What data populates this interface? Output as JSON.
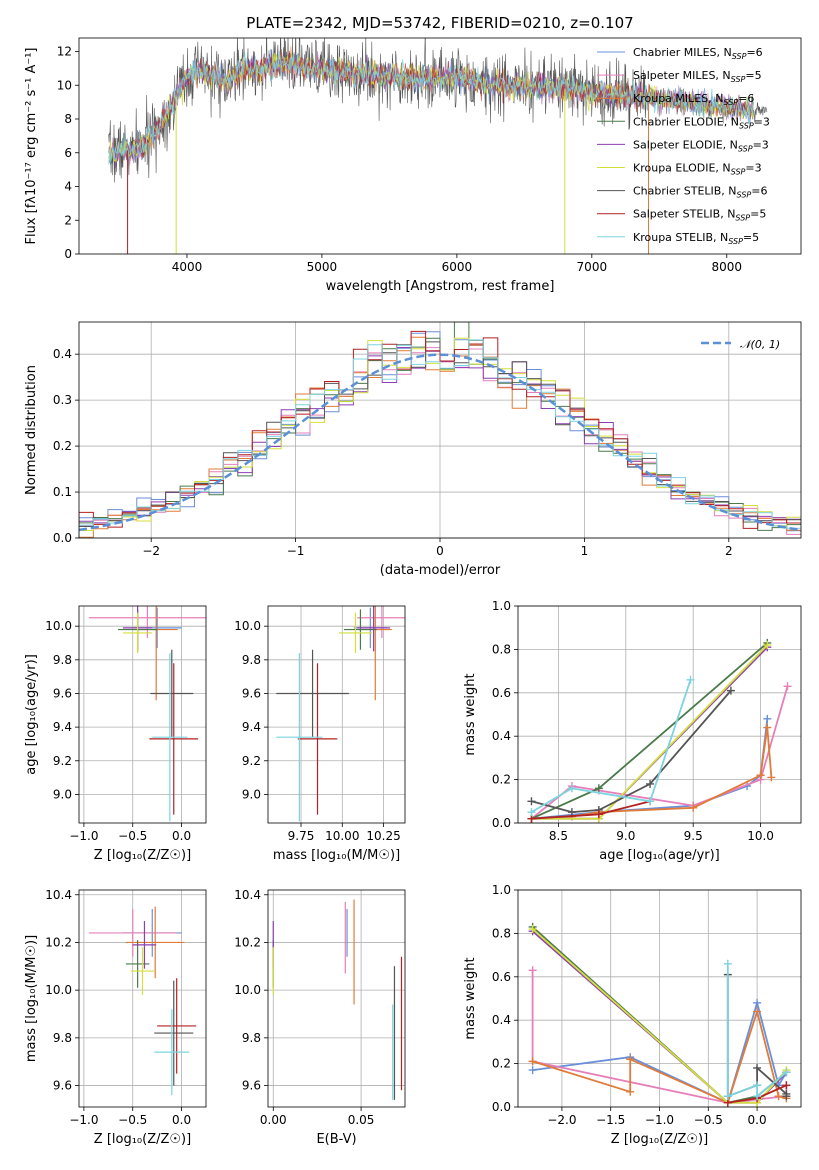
{
  "figure": {
    "title": "PLATE=2342, MJD=53742, FIBERID=0210, z=0.107"
  },
  "colors": {
    "chabrier_miles": "#6a8fd8",
    "salpeter_miles": "#e67fb9",
    "kroupa_miles": "#e07b39",
    "chabrier_elodie": "#4a7a4a",
    "salpeter_elodie": "#8e3fb2",
    "kroupa_elodie": "#d4df3c",
    "chabrier_stelib": "#555555",
    "salpeter_stelib": "#b22222",
    "kroupa_stelib": "#7dd3df",
    "gauss": "#5b8fd6"
  },
  "chart_data": [
    {
      "id": "spectrum",
      "type": "line",
      "title": "PLATE=2342, MJD=53742, FIBERID=0210, z=0.107",
      "xlabel": "wavelength [Angstrom, rest frame]",
      "ylabel": "Flux [fλ10⁻¹⁷ erg cm⁻² s⁻¹ A⁻¹]",
      "xlim": [
        3200,
        8550
      ],
      "ylim": [
        0,
        12.8
      ],
      "xticks": [
        4000,
        5000,
        6000,
        7000,
        8000
      ],
      "yticks": [
        0,
        2,
        4,
        6,
        8,
        10,
        12
      ],
      "grid": false,
      "legend_position": "top-right",
      "data_anchor": {
        "x": [
          3420,
          3500,
          3600,
          3700,
          3800,
          3900,
          4000,
          4100,
          4200,
          4300,
          4400,
          4500,
          4600,
          4700,
          4800,
          4900,
          5000,
          5200,
          5400,
          5600,
          5800,
          6000,
          6200,
          6400,
          6600,
          6800,
          7000,
          7200,
          7400,
          7600,
          7800,
          8000,
          8200,
          8300
        ],
        "y": [
          5.8,
          6.2,
          6.1,
          6.6,
          7.6,
          9.0,
          10.6,
          10.8,
          10.6,
          10.2,
          10.9,
          11.0,
          11.1,
          11.2,
          11.3,
          11.0,
          10.9,
          10.8,
          10.6,
          10.5,
          10.4,
          10.5,
          10.1,
          10.0,
          9.9,
          9.8,
          9.6,
          9.4,
          9.3,
          9.1,
          8.9,
          8.7,
          8.5,
          8.6
        ]
      },
      "legend": [
        {
          "label": "Chabrier MILES, N",
          "sub": "SSP",
          "value": "=6",
          "color_key": "chabrier_miles"
        },
        {
          "label": "Salpeter MILES, N",
          "sub": "SSP",
          "value": "=5",
          "color_key": "salpeter_miles"
        },
        {
          "label": "Kroupa MILES, N",
          "sub": "SSP",
          "value": "=6",
          "color_key": "kroupa_miles"
        },
        {
          "label": "Chabrier ELODIE, N",
          "sub": "SSP",
          "value": "=3",
          "color_key": "chabrier_elodie"
        },
        {
          "label": "Salpeter ELODIE, N",
          "sub": "SSP",
          "value": "=3",
          "color_key": "salpeter_elodie"
        },
        {
          "label": "Kroupa ELODIE, N",
          "sub": "SSP",
          "value": "=3",
          "color_key": "kroupa_elodie"
        },
        {
          "label": "Chabrier STELIB, N",
          "sub": "SSP",
          "value": "=6",
          "color_key": "chabrier_stelib"
        },
        {
          "label": "Salpeter STELIB, N",
          "sub": "SSP",
          "value": "=5",
          "color_key": "salpeter_stelib"
        },
        {
          "label": "Kroupa STELIB, N",
          "sub": "SSP",
          "value": "=5",
          "color_key": "kroupa_stelib"
        }
      ]
    },
    {
      "id": "residuals",
      "type": "line",
      "xlabel": "(data-model)/error",
      "ylabel": "Normed distribution",
      "xlim": [
        -2.5,
        2.5
      ],
      "ylim": [
        0,
        0.47
      ],
      "xticks": [
        -2,
        -1,
        0,
        1,
        2
      ],
      "yticks": [
        0.0,
        0.1,
        0.2,
        0.3,
        0.4
      ],
      "grid": true,
      "legend_position": "top-right",
      "gauss_label": "𝒩(0, 1)",
      "bin_width": 0.1
    },
    {
      "id": "age_vs_Z",
      "type": "scatter",
      "xlabel": "Z [log₁₀(Z/Z☉)]",
      "ylabel": "age  [log₁₀(age/yr)]",
      "xlim": [
        -1.05,
        0.25
      ],
      "ylim": [
        8.83,
        10.12
      ],
      "xticks": [
        -1.0,
        -0.5,
        0.0
      ],
      "yticks": [
        9.0,
        9.2,
        9.4,
        9.6,
        9.8,
        10.0
      ],
      "grid": true,
      "points": [
        {
          "x": -0.25,
          "y": 9.99,
          "xerr": 0.25,
          "yerr": 0.12,
          "color_key": "chabrier_miles"
        },
        {
          "x": -0.35,
          "y": 10.05,
          "xerr": 0.6,
          "yerr": 0.12,
          "color_key": "salpeter_miles"
        },
        {
          "x": -0.26,
          "y": 9.98,
          "xerr": 0.22,
          "yerr": 0.42,
          "color_key": "kroupa_miles"
        },
        {
          "x": -0.45,
          "y": 9.98,
          "xerr": 0.2,
          "yerr": 0.12,
          "color_key": "chabrier_elodie"
        },
        {
          "x": -0.45,
          "y": 9.99,
          "xerr": 0.15,
          "yerr": 0.14,
          "color_key": "salpeter_elodie"
        },
        {
          "x": -0.45,
          "y": 9.96,
          "xerr": 0.15,
          "yerr": 0.12,
          "color_key": "kroupa_elodie"
        },
        {
          "x": -0.1,
          "y": 9.6,
          "xerr": 0.22,
          "yerr": 0.26,
          "color_key": "chabrier_stelib"
        },
        {
          "x": -0.08,
          "y": 9.33,
          "xerr": 0.25,
          "yerr": 0.45,
          "color_key": "salpeter_stelib"
        },
        {
          "x": -0.12,
          "y": 9.34,
          "xerr": 0.18,
          "yerr": 0.5,
          "color_key": "kroupa_stelib"
        }
      ]
    },
    {
      "id": "age_vs_mass",
      "type": "scatter",
      "xlabel": "mass [log₁₀(M/M☉)]",
      "ylabel": "",
      "xlim": [
        9.55,
        10.38
      ],
      "ylim": [
        8.83,
        10.12
      ],
      "xticks": [
        9.75,
        10.0,
        10.25
      ],
      "yticks": [
        9.0,
        9.2,
        9.4,
        9.6,
        9.8,
        10.0
      ],
      "grid": true,
      "points": [
        {
          "x": 10.17,
          "y": 9.99,
          "xerr": 0.1,
          "yerr": 0.12,
          "color_key": "chabrier_miles"
        },
        {
          "x": 10.24,
          "y": 10.05,
          "xerr": 0.15,
          "yerr": 0.12,
          "color_key": "salpeter_miles"
        },
        {
          "x": 10.2,
          "y": 9.98,
          "xerr": 0.1,
          "yerr": 0.42,
          "color_key": "kroupa_miles"
        },
        {
          "x": 10.11,
          "y": 9.98,
          "xerr": 0.1,
          "yerr": 0.12,
          "color_key": "chabrier_elodie"
        },
        {
          "x": 10.19,
          "y": 9.99,
          "xerr": 0.1,
          "yerr": 0.14,
          "color_key": "salpeter_elodie"
        },
        {
          "x": 10.08,
          "y": 9.96,
          "xerr": 0.1,
          "yerr": 0.12,
          "color_key": "kroupa_elodie"
        },
        {
          "x": 9.82,
          "y": 9.6,
          "xerr": 0.22,
          "yerr": 0.26,
          "color_key": "chabrier_stelib"
        },
        {
          "x": 9.85,
          "y": 9.33,
          "xerr": 0.12,
          "yerr": 0.45,
          "color_key": "salpeter_stelib"
        },
        {
          "x": 9.74,
          "y": 9.34,
          "xerr": 0.14,
          "yerr": 0.5,
          "color_key": "kroupa_stelib"
        }
      ]
    },
    {
      "id": "mass_weight_vs_age",
      "type": "line",
      "xlabel": "age  [log₁₀(age/yr)]",
      "ylabel": "mass weight",
      "xlim": [
        8.2,
        10.3
      ],
      "ylim": [
        0,
        1.0
      ],
      "xticks": [
        8.5,
        9.0,
        9.5,
        10.0
      ],
      "yticks": [
        0.0,
        0.2,
        0.4,
        0.6,
        0.8,
        1.0
      ],
      "grid": true,
      "series": [
        {
          "color_key": "chabrier_miles",
          "x": [
            8.3,
            8.8,
            9.5,
            9.9,
            10.0,
            10.05
          ],
          "y": [
            0.02,
            0.05,
            0.08,
            0.17,
            0.22,
            0.48
          ]
        },
        {
          "color_key": "salpeter_miles",
          "x": [
            8.3,
            8.6,
            8.8,
            9.5,
            10.0,
            10.2
          ],
          "y": [
            0.02,
            0.17,
            0.15,
            0.08,
            0.2,
            0.63
          ]
        },
        {
          "color_key": "kroupa_miles",
          "x": [
            8.3,
            8.6,
            8.8,
            9.5,
            10.0,
            10.05,
            10.08
          ],
          "y": [
            0.02,
            0.03,
            0.05,
            0.07,
            0.22,
            0.44,
            0.21
          ]
        },
        {
          "color_key": "chabrier_elodie",
          "x": [
            8.3,
            8.8,
            10.05
          ],
          "y": [
            0.02,
            0.16,
            0.83
          ]
        },
        {
          "color_key": "salpeter_elodie",
          "x": [
            8.3,
            8.8,
            10.05
          ],
          "y": [
            0.02,
            0.02,
            0.81
          ]
        },
        {
          "color_key": "kroupa_elodie",
          "x": [
            8.3,
            8.8,
            10.05
          ],
          "y": [
            0.02,
            0.02,
            0.82
          ]
        },
        {
          "color_key": "chabrier_stelib",
          "x": [
            8.3,
            8.6,
            8.8,
            9.18,
            9.78
          ],
          "y": [
            0.1,
            0.05,
            0.06,
            0.18,
            0.61
          ]
        },
        {
          "color_key": "salpeter_stelib",
          "x": [
            8.3,
            8.8,
            9.18
          ],
          "y": [
            0.02,
            0.04,
            0.1
          ]
        },
        {
          "color_key": "kroupa_stelib",
          "x": [
            8.3,
            8.6,
            9.18,
            9.48
          ],
          "y": [
            0.05,
            0.16,
            0.1,
            0.66
          ]
        }
      ]
    },
    {
      "id": "mass_vs_Z",
      "type": "scatter",
      "xlabel": "Z [log₁₀(Z/Z☉)]",
      "ylabel": "mass [log₁₀(M/M☉)]",
      "xlim": [
        -1.05,
        0.25
      ],
      "ylim": [
        9.51,
        10.42
      ],
      "xticks": [
        -1.0,
        -0.5,
        0.0
      ],
      "yticks": [
        9.6,
        9.8,
        10.0,
        10.2,
        10.4
      ],
      "grid": true,
      "points": [
        {
          "x": -0.3,
          "y": 10.24,
          "xerr": 0.3,
          "yerr": 0.1,
          "color_key": "chabrier_miles"
        },
        {
          "x": -0.5,
          "y": 10.24,
          "xerr": 0.45,
          "yerr": 0.1,
          "color_key": "salpeter_miles"
        },
        {
          "x": -0.27,
          "y": 10.2,
          "xerr": 0.3,
          "yerr": 0.15,
          "color_key": "kroupa_miles"
        },
        {
          "x": -0.45,
          "y": 10.11,
          "xerr": 0.12,
          "yerr": 0.1,
          "color_key": "chabrier_elodie"
        },
        {
          "x": -0.38,
          "y": 10.19,
          "xerr": 0.12,
          "yerr": 0.1,
          "color_key": "salpeter_elodie"
        },
        {
          "x": -0.4,
          "y": 10.08,
          "xerr": 0.12,
          "yerr": 0.1,
          "color_key": "kroupa_elodie"
        },
        {
          "x": -0.08,
          "y": 9.82,
          "xerr": 0.2,
          "yerr": 0.22,
          "color_key": "chabrier_stelib"
        },
        {
          "x": -0.05,
          "y": 9.85,
          "xerr": 0.2,
          "yerr": 0.2,
          "color_key": "salpeter_stelib"
        },
        {
          "x": -0.1,
          "y": 9.74,
          "xerr": 0.18,
          "yerr": 0.18,
          "color_key": "kroupa_stelib"
        }
      ]
    },
    {
      "id": "mass_vs_ebv",
      "type": "scatter",
      "xlabel": "E(B-V)",
      "ylabel": "",
      "xlim": [
        -0.003,
        0.075
      ],
      "ylim": [
        9.51,
        10.42
      ],
      "xticks": [
        0.0,
        0.05
      ],
      "yticks": [
        9.6,
        9.8,
        10.0,
        10.2,
        10.4
      ],
      "grid": true,
      "points": [
        {
          "x": 0.0,
          "y": 10.11,
          "xerr": 0,
          "yerr": 0.1,
          "color_key": "chabrier_elodie"
        },
        {
          "x": 0.0,
          "y": 10.19,
          "xerr": 0,
          "yerr": 0.1,
          "color_key": "salpeter_elodie"
        },
        {
          "x": 0.0,
          "y": 10.08,
          "xerr": 0,
          "yerr": 0.1,
          "color_key": "kroupa_elodie"
        },
        {
          "x": 0.042,
          "y": 10.24,
          "xerr": 0,
          "yerr": 0.1,
          "color_key": "chabrier_miles"
        },
        {
          "x": 0.041,
          "y": 10.22,
          "xerr": 0,
          "yerr": 0.15,
          "color_key": "salpeter_miles"
        },
        {
          "x": 0.046,
          "y": 10.16,
          "xerr": 0,
          "yerr": 0.22,
          "color_key": "kroupa_miles"
        },
        {
          "x": 0.069,
          "y": 9.82,
          "xerr": 0,
          "yerr": 0.28,
          "color_key": "chabrier_stelib"
        },
        {
          "x": 0.073,
          "y": 9.86,
          "xerr": 0,
          "yerr": 0.28,
          "color_key": "salpeter_stelib"
        },
        {
          "x": 0.068,
          "y": 9.74,
          "xerr": 0,
          "yerr": 0.2,
          "color_key": "kroupa_stelib"
        }
      ]
    },
    {
      "id": "mass_weight_vs_Z",
      "type": "line",
      "xlabel": "Z [log₁₀(Z/Z☉)]",
      "ylabel": "mass weight",
      "xlim": [
        -2.45,
        0.45
      ],
      "ylim": [
        0,
        1.0
      ],
      "xticks": [
        -2.0,
        -1.5,
        -1.0,
        -0.5,
        0.0
      ],
      "yticks": [
        0.0,
        0.2,
        0.4,
        0.6,
        0.8,
        1.0
      ],
      "grid": true,
      "series": [
        {
          "color_key": "chabrier_miles",
          "x": [
            -2.3,
            -1.3,
            -0.3,
            0.0,
            0.22,
            0.3
          ],
          "y": [
            0.17,
            0.23,
            0.02,
            0.48,
            0.1,
            0.16
          ]
        },
        {
          "color_key": "salpeter_miles",
          "x": [
            -2.3,
            -2.3,
            -0.3,
            0.3,
            0.3
          ],
          "y": [
            0.63,
            0.21,
            0.02,
            0.05,
            0.1
          ]
        },
        {
          "color_key": "kroupa_miles",
          "x": [
            -2.3,
            -1.3,
            -1.3,
            -0.3,
            0.0,
            0.22,
            0.3
          ],
          "y": [
            0.21,
            0.07,
            0.22,
            0.02,
            0.44,
            0.05,
            0.04
          ]
        },
        {
          "color_key": "chabrier_elodie",
          "x": [
            -2.3,
            -0.3,
            0.0,
            0.3
          ],
          "y": [
            0.83,
            0.02,
            0.05,
            0.16
          ]
        },
        {
          "color_key": "salpeter_elodie",
          "x": [
            -2.3,
            -0.3,
            0.0,
            0.3
          ],
          "y": [
            0.81,
            0.02,
            0.02,
            0.16
          ]
        },
        {
          "color_key": "kroupa_elodie",
          "x": [
            -2.3,
            -0.3,
            0.0,
            0.3
          ],
          "y": [
            0.82,
            0.02,
            0.02,
            0.17
          ]
        },
        {
          "color_key": "chabrier_stelib",
          "x": [
            -0.3,
            -0.3,
            0.0,
            0.0,
            0.3,
            0.3
          ],
          "y": [
            0.61,
            0.05,
            0.1,
            0.18,
            0.06,
            0.05
          ]
        },
        {
          "color_key": "salpeter_stelib",
          "x": [
            -0.3,
            0.0,
            0.3
          ],
          "y": [
            0.02,
            0.04,
            0.1
          ]
        },
        {
          "color_key": "kroupa_stelib",
          "x": [
            -0.3,
            -0.3,
            0.0,
            0.0,
            0.3
          ],
          "y": [
            0.66,
            0.05,
            0.1,
            0.05,
            0.16
          ]
        }
      ]
    }
  ]
}
